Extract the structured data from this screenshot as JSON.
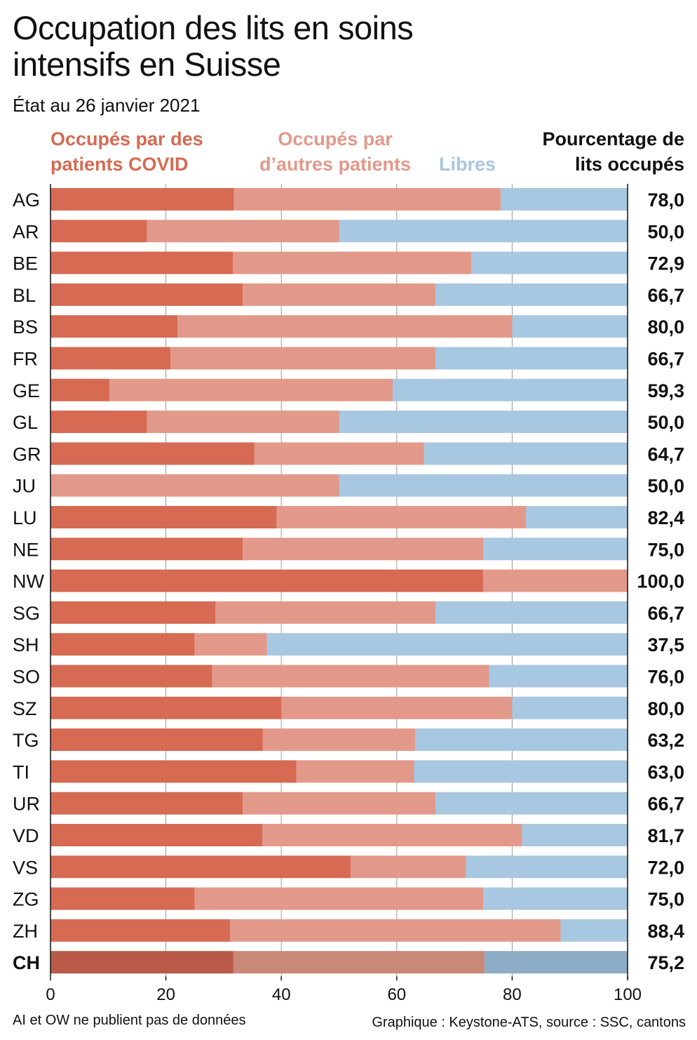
{
  "title": "Occupation des lits en soins intensifs en Suisse",
  "subtitle": "État au 26 janvier 2021",
  "legend": {
    "covid": "Occupés par des patients COVID",
    "other": "Occupés par d’autres patients",
    "free": "Libres",
    "percent": "Pourcentage de lits occupés"
  },
  "note": "AI et OW ne publient pas de données",
  "source": "Graphique : Keystone-ATS, source : SSC, cantons",
  "colors": {
    "covid": "#d66a52",
    "other": "#e2998a",
    "free": "#a8c7e1",
    "covid_total": "#b85a47",
    "other_total": "#c98878",
    "free_total": "#8eadc6",
    "grid": "#999999"
  },
  "chart_data": {
    "type": "bar",
    "orientation": "horizontal",
    "stacked": true,
    "xlim": [
      0,
      100
    ],
    "xticks": [
      0,
      20,
      40,
      60,
      80,
      100
    ],
    "grid": true,
    "categories": [
      "AG",
      "AR",
      "BE",
      "BL",
      "BS",
      "FR",
      "GE",
      "GL",
      "GR",
      "JU",
      "LU",
      "NE",
      "NW",
      "SG",
      "SH",
      "SO",
      "SZ",
      "TG",
      "TI",
      "UR",
      "VD",
      "VS",
      "ZG",
      "ZH",
      "CH"
    ],
    "series": [
      {
        "name": "Occupés par des patients COVID",
        "values": [
          31.8,
          16.7,
          31.6,
          33.3,
          22.0,
          20.8,
          10.2,
          16.7,
          35.3,
          0.0,
          39.2,
          33.3,
          75.0,
          28.6,
          25.0,
          28.0,
          40.0,
          36.8,
          42.6,
          33.3,
          36.7,
          52.0,
          25.0,
          31.1,
          31.7
        ]
      },
      {
        "name": "Occupés par d’autres patients",
        "values": [
          46.2,
          33.3,
          41.3,
          33.4,
          58.0,
          45.9,
          49.1,
          33.3,
          29.4,
          50.0,
          43.2,
          41.7,
          25.0,
          38.1,
          12.5,
          48.0,
          40.0,
          26.4,
          20.4,
          33.4,
          45.0,
          20.0,
          50.0,
          57.3,
          43.5
        ]
      },
      {
        "name": "Libres",
        "values": [
          22.0,
          50.0,
          27.1,
          33.3,
          20.0,
          33.3,
          40.7,
          50.0,
          35.3,
          50.0,
          17.6,
          25.0,
          0.0,
          33.3,
          62.5,
          24.0,
          20.0,
          36.8,
          37.0,
          33.3,
          18.3,
          28.0,
          25.0,
          11.6,
          24.8
        ]
      }
    ],
    "percent_labels": [
      "78,0",
      "50,0",
      "72,9",
      "66,7",
      "80,0",
      "66,7",
      "59,3",
      "50,0",
      "64,7",
      "50,0",
      "82,4",
      "75,0",
      "100,0",
      "66,7",
      "37,5",
      "76,0",
      "80,0",
      "63,2",
      "63,0",
      "66,7",
      "81,7",
      "72,0",
      "75,0",
      "88,4",
      "75,2"
    ]
  }
}
